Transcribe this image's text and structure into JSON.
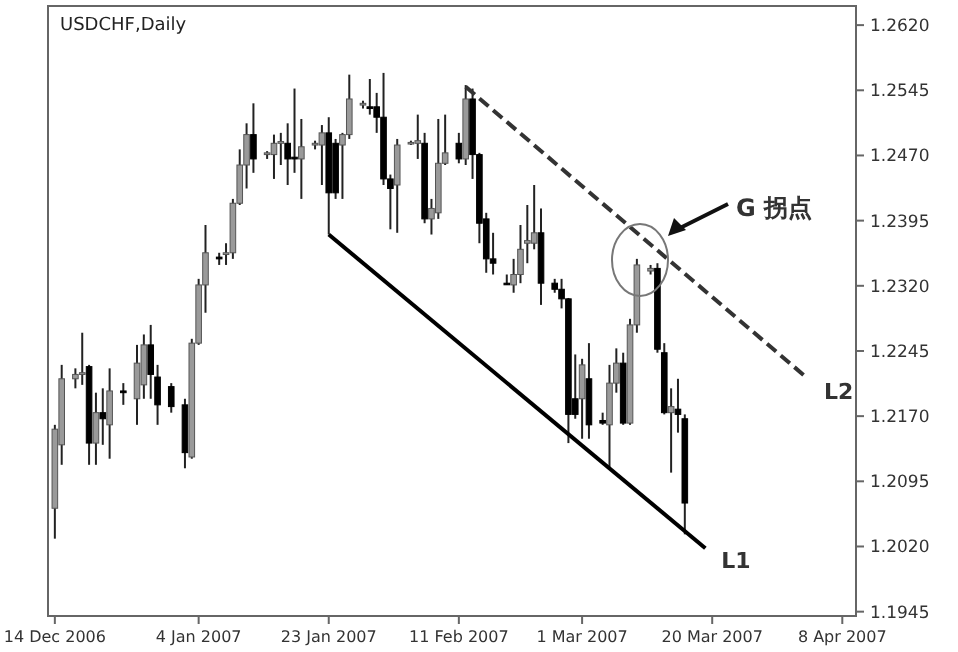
{
  "chart_data": {
    "type": "candlestick",
    "title": "USDCHF,Daily",
    "x": [
      "2006-12-14",
      "2006-12-15",
      "2006-12-17",
      "2006-12-18",
      "2006-12-19",
      "2006-12-20",
      "2006-12-21",
      "2006-12-22",
      "2006-12-24",
      "2006-12-26",
      "2006-12-27",
      "2006-12-28",
      "2006-12-29",
      "2006-12-31",
      "2007-01-02",
      "2007-01-03",
      "2007-01-04",
      "2007-01-05",
      "2007-01-07",
      "2007-01-08",
      "2007-01-09",
      "2007-01-10",
      "2007-01-11",
      "2007-01-12",
      "2007-01-14",
      "2007-01-15",
      "2007-01-16",
      "2007-01-17",
      "2007-01-18",
      "2007-01-19",
      "2007-01-21",
      "2007-01-22",
      "2007-01-23",
      "2007-01-24",
      "2007-01-25",
      "2007-01-26",
      "2007-01-28",
      "2007-01-29",
      "2007-01-30",
      "2007-01-31",
      "2007-02-01",
      "2007-02-02",
      "2007-02-04",
      "2007-02-05",
      "2007-02-06",
      "2007-02-07",
      "2007-02-08",
      "2007-02-09",
      "2007-02-11",
      "2007-02-12",
      "2007-02-13",
      "2007-02-14",
      "2007-02-15",
      "2007-02-16",
      "2007-02-18",
      "2007-02-19",
      "2007-02-20",
      "2007-02-21",
      "2007-02-22",
      "2007-02-23",
      "2007-02-25",
      "2007-02-26",
      "2007-02-27",
      "2007-02-28",
      "2007-03-01",
      "2007-03-02",
      "2007-03-04",
      "2007-03-05",
      "2007-03-06",
      "2007-03-07",
      "2007-03-08",
      "2007-03-09",
      "2007-03-11",
      "2007-03-12",
      "2007-03-13",
      "2007-03-14",
      "2007-03-15",
      "2007-03-16"
    ],
    "ohlc": [
      [
        1.2064,
        1.216,
        1.2029,
        1.2155
      ],
      [
        1.2137,
        1.2229,
        1.2114,
        1.2213
      ],
      [
        1.2213,
        1.2225,
        1.2202,
        1.2218
      ],
      [
        1.2218,
        1.2266,
        1.2206,
        1.222
      ],
      [
        1.2227,
        1.2229,
        1.2114,
        1.2139
      ],
      [
        1.2139,
        1.2197,
        1.2114,
        1.2174
      ],
      [
        1.2174,
        1.2202,
        1.2137,
        1.2167
      ],
      [
        1.216,
        1.2225,
        1.2121,
        1.2199
      ],
      [
        1.2199,
        1.2208,
        1.2183,
        1.2197
      ],
      [
        1.219,
        1.2252,
        1.216,
        1.2231
      ],
      [
        1.2206,
        1.2264,
        1.219,
        1.2252
      ],
      [
        1.2252,
        1.2275,
        1.219,
        1.2218
      ],
      [
        1.2215,
        1.2229,
        1.216,
        1.2183
      ],
      [
        1.2204,
        1.2208,
        1.2174,
        1.2181
      ],
      [
        1.2183,
        1.219,
        1.211,
        1.2128
      ],
      [
        1.2123,
        1.2259,
        1.2121,
        1.2254
      ],
      [
        1.2254,
        1.2328,
        1.2252,
        1.2321
      ],
      [
        1.2321,
        1.239,
        1.2289,
        1.2358
      ],
      [
        1.2353,
        1.2358,
        1.2344,
        1.2351
      ],
      [
        1.2356,
        1.2369,
        1.2344,
        1.2358
      ],
      [
        1.2358,
        1.242,
        1.2351,
        1.2415
      ],
      [
        1.2415,
        1.2477,
        1.2413,
        1.2459
      ],
      [
        1.2459,
        1.2507,
        1.2432,
        1.2494
      ],
      [
        1.2494,
        1.253,
        1.245,
        1.2466
      ],
      [
        1.2471,
        1.2475,
        1.2466,
        1.2473
      ],
      [
        1.2471,
        1.2494,
        1.2443,
        1.2484
      ],
      [
        1.2484,
        1.2496,
        1.2459,
        1.2486
      ],
      [
        1.2484,
        1.2507,
        1.2436,
        1.2466
      ],
      [
        1.2468,
        1.2547,
        1.245,
        1.2466
      ],
      [
        1.2466,
        1.2512,
        1.242,
        1.248
      ],
      [
        1.2482,
        1.2487,
        1.2477,
        1.2484
      ],
      [
        1.2482,
        1.2505,
        1.2436,
        1.2496
      ],
      [
        1.2496,
        1.2514,
        1.2379,
        1.2427
      ],
      [
        1.2484,
        1.2489,
        1.242,
        1.2427
      ],
      [
        1.2482,
        1.2496,
        1.242,
        1.2494
      ],
      [
        1.2494,
        1.2563,
        1.2489,
        1.2535
      ],
      [
        1.2528,
        1.2533,
        1.2524,
        1.253
      ],
      [
        1.2526,
        1.2558,
        1.2517,
        1.2524
      ],
      [
        1.2526,
        1.2542,
        1.2496,
        1.2514
      ],
      [
        1.2514,
        1.2565,
        1.2436,
        1.2443
      ],
      [
        1.2443,
        1.2448,
        1.2385,
        1.2432
      ],
      [
        1.2436,
        1.2489,
        1.2381,
        1.2482
      ],
      [
        1.2484,
        1.2487,
        1.2482,
        1.2485
      ],
      [
        1.2484,
        1.2517,
        1.2466,
        1.2487
      ],
      [
        1.2484,
        1.2496,
        1.2392,
        1.2397
      ],
      [
        1.2397,
        1.242,
        1.2379,
        1.2409
      ],
      [
        1.2404,
        1.2512,
        1.2397,
        1.2461
      ],
      [
        1.2461,
        1.2517,
        1.2459,
        1.2473
      ],
      [
        1.2484,
        1.2496,
        1.2461,
        1.2466
      ],
      [
        1.2466,
        1.2551,
        1.2459,
        1.2535
      ],
      [
        1.2535,
        1.2547,
        1.2443,
        1.2471
      ],
      [
        1.2471,
        1.2473,
        1.2369,
        1.2392
      ],
      [
        1.2397,
        1.2404,
        1.2335,
        1.2351
      ],
      [
        1.2351,
        1.2381,
        1.2333,
        1.2346
      ],
      [
        1.2323,
        1.2333,
        1.2321,
        1.2322
      ],
      [
        1.2321,
        1.2351,
        1.2312,
        1.2333
      ],
      [
        1.2333,
        1.239,
        1.2323,
        1.2362
      ],
      [
        1.2369,
        1.2413,
        1.2346,
        1.2372
      ],
      [
        1.2369,
        1.2436,
        1.2362,
        1.2381
      ],
      [
        1.2381,
        1.2409,
        1.2298,
        1.2323
      ],
      [
        1.2323,
        1.2328,
        1.2312,
        1.2316
      ],
      [
        1.2316,
        1.2328,
        1.2294,
        1.2305
      ],
      [
        1.2305,
        1.2306,
        1.2139,
        1.2172
      ],
      [
        1.219,
        1.2241,
        1.2167,
        1.2172
      ],
      [
        1.219,
        1.2236,
        1.2144,
        1.2229
      ],
      [
        1.2213,
        1.2254,
        1.2144,
        1.216
      ],
      [
        1.2165,
        1.2174,
        1.216,
        1.2162
      ],
      [
        1.216,
        1.2229,
        1.211,
        1.2208
      ],
      [
        1.2208,
        1.2248,
        1.2197,
        1.2231
      ],
      [
        1.2231,
        1.2243,
        1.216,
        1.2162
      ],
      [
        1.2162,
        1.2282,
        1.216,
        1.2275
      ],
      [
        1.2275,
        1.2351,
        1.2266,
        1.2344
      ],
      [
        1.2337,
        1.2344,
        1.2333,
        1.234
      ],
      [
        1.234,
        1.2346,
        1.2243,
        1.2247
      ],
      [
        1.2243,
        1.2254,
        1.2172,
        1.2174
      ],
      [
        1.2174,
        1.2202,
        1.2105,
        1.2181
      ],
      [
        1.2178,
        1.2213,
        1.2151,
        1.2172
      ],
      [
        1.2167,
        1.2172,
        1.2034,
        1.207
      ]
    ],
    "series": [
      {
        "type": "line",
        "name": "L1",
        "color": "#000000",
        "line_style": "solid",
        "x": [
          "2007-01-23",
          "2007-03-19"
        ],
        "values": [
          1.2379,
          1.2018
        ]
      },
      {
        "type": "line",
        "name": "L2",
        "color": "#333333",
        "line_style": "dashed",
        "x": [
          "2007-02-12",
          "2007-04-03"
        ],
        "values": [
          1.2549,
          1.2213
        ]
      }
    ],
    "annotations": [
      "G 拐点"
    ],
    "xlim": [
      "2006-12-13",
      "2007-04-10"
    ],
    "xticks": [
      {
        "value": "2006-12-14",
        "label": "14 Dec 2006"
      },
      {
        "value": "2007-01-04",
        "label": "4 Jan 2007"
      },
      {
        "value": "2007-01-23",
        "label": "23 Jan 2007"
      },
      {
        "value": "2007-02-11",
        "label": "11 Feb 2007"
      },
      {
        "value": "2007-03-01",
        "label": "1 Mar 2007"
      },
      {
        "value": "2007-03-20",
        "label": "20 Mar 2007"
      },
      {
        "value": "2007-04-08",
        "label": "8 Apr 2007"
      }
    ],
    "ylim": [
      1.194,
      1.2642
    ],
    "yticks": [
      {
        "value": 1.262,
        "label": "1.2620"
      },
      1.2545,
      {
        "value": 1.247,
        "label": "1.2470"
      },
      1.2395,
      {
        "value": 1.232,
        "label": "1.2320"
      },
      1.2245,
      {
        "value": 1.217,
        "label": "1.2170"
      },
      1.2095,
      {
        "value": 1.202,
        "label": "1.2020"
      },
      1.1945
    ]
  }
}
